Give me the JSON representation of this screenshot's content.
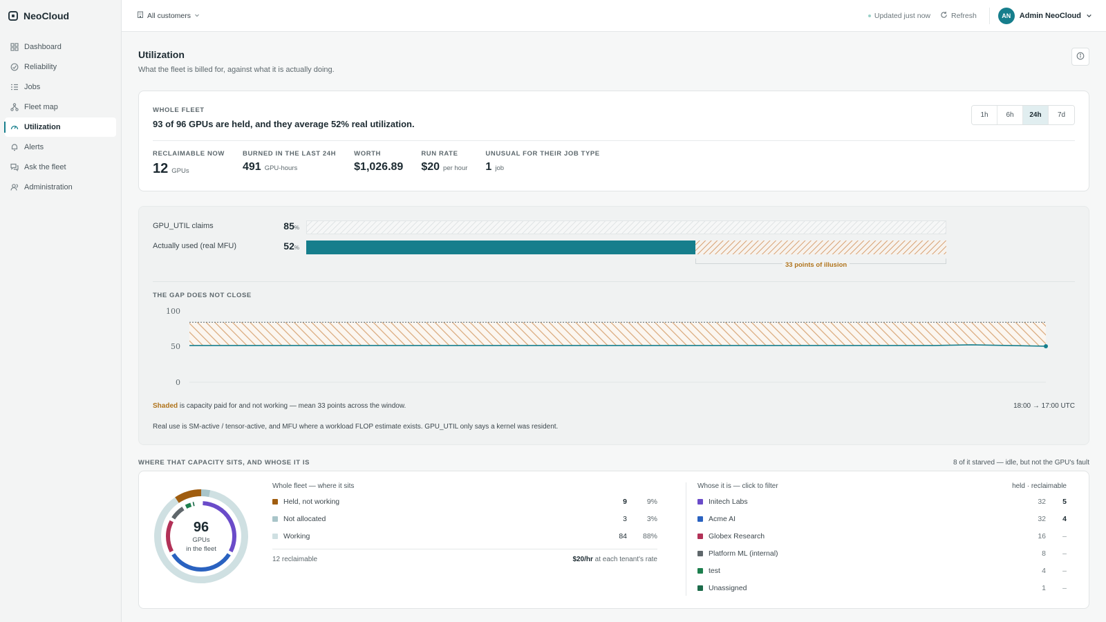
{
  "brand": {
    "name": "NeoCloud"
  },
  "sidebar": {
    "items": [
      {
        "label": "Dashboard",
        "icon": "grid-icon",
        "active": false
      },
      {
        "label": "Reliability",
        "icon": "shield-icon",
        "active": false
      },
      {
        "label": "Jobs",
        "icon": "list-icon",
        "active": false
      },
      {
        "label": "Fleet map",
        "icon": "network-icon",
        "active": false
      },
      {
        "label": "Utilization",
        "icon": "gauge-icon",
        "active": true
      },
      {
        "label": "Alerts",
        "icon": "bell-icon",
        "active": false
      },
      {
        "label": "Ask the fleet",
        "icon": "chat-icon",
        "active": false
      },
      {
        "label": "Administration",
        "icon": "users-icon",
        "active": false
      }
    ]
  },
  "topbar": {
    "customer_filter": "All customers",
    "updated": "Updated just now",
    "refresh": "Refresh",
    "user_initials": "AN",
    "user_name": "Admin NeoCloud"
  },
  "page": {
    "title": "Utilization",
    "subtitle": "What the fleet is billed for, against what it is actually doing."
  },
  "summary": {
    "eyebrow": "WHOLE FLEET",
    "headline": "93 of 96 GPUs are held, and they average 52% real utilization.",
    "ranges": [
      {
        "label": "1h",
        "active": false
      },
      {
        "label": "6h",
        "active": false
      },
      {
        "label": "24h",
        "active": true
      },
      {
        "label": "7d",
        "active": false
      }
    ],
    "stats": [
      {
        "label": "RECLAIMABLE NOW",
        "value": "12",
        "unit": "GPUs"
      },
      {
        "label": "BURNED IN THE LAST 24H",
        "value": "491",
        "unit": "GPU-hours"
      },
      {
        "label": "WORTH",
        "value": "$1,026.89",
        "unit": ""
      },
      {
        "label": "RUN RATE",
        "value": "$20",
        "unit": "per hour"
      },
      {
        "label": "UNUSUAL FOR THEIR JOB TYPE",
        "value": "1",
        "unit": "job"
      }
    ]
  },
  "gap": {
    "claims_label": "GPU_UTIL claims",
    "claims_value": "85",
    "used_label": "Actually used (real MFU)",
    "used_value": "52",
    "pct_sign": "%",
    "illusion_label": "33 points of illusion",
    "eyebrow": "THE GAP DOES NOT CLOSE",
    "note_shaded": "Shaded",
    "note_rest": " is capacity paid for and not working — mean 33 points across the window.",
    "time_range": "18:00 → 17:00 UTC",
    "note2": "Real use is SM-active / tensor-active, and MFU where a workload FLOP estimate exists. GPU_UTIL only says a kernel was resident."
  },
  "chart_data": {
    "type": "area",
    "ylim": [
      0,
      100
    ],
    "yticks": [
      "100",
      "50",
      "0"
    ],
    "x_range": [
      "18:00",
      "17:00"
    ],
    "series": [
      {
        "values": [
          85,
          85,
          85,
          85,
          85,
          85,
          85,
          85,
          85,
          85,
          85,
          85,
          85,
          85,
          85,
          85,
          85,
          85,
          85,
          85,
          85,
          85,
          85,
          85
        ]
      },
      {
        "values": [
          52,
          52,
          52,
          52,
          52,
          52,
          52,
          52,
          52,
          52,
          52,
          52,
          52,
          52,
          52,
          52,
          52,
          52,
          52,
          52,
          52,
          53,
          52,
          51
        ]
      }
    ],
    "shaded_mean_gap": 33
  },
  "capacity": {
    "eyebrow": "WHERE THAT CAPACITY SITS, AND WHOSE IT IS",
    "right_note": "8 of it starved — idle, but not the GPU's fault",
    "total": "96",
    "total_label_1": "GPUs",
    "total_label_2": "in the fleet",
    "where_head": "Whole fleet — where it sits",
    "where_rows": [
      {
        "label": "Held, not working",
        "count": "9",
        "pct": "9%",
        "color": "#a05d0f",
        "strong": true
      },
      {
        "label": "Not allocated",
        "count": "3",
        "pct": "3%",
        "color": "#a9c5c9",
        "strong": false
      },
      {
        "label": "Working",
        "count": "84",
        "pct": "88%",
        "color": "#cfe0e2",
        "strong": false
      }
    ],
    "reclaimable": "12 reclaimable",
    "rate_bold": "$20/hr",
    "rate_rest": " at each tenant's rate",
    "whose_head": "Whose it is — click to filter",
    "whose_cols": "held · reclaimable",
    "tenants": [
      {
        "name": "Initech Labs",
        "held": "32",
        "reclaimable": "5",
        "color": "#6a4bc9"
      },
      {
        "name": "Acme AI",
        "held": "32",
        "reclaimable": "4",
        "color": "#2a62c0"
      },
      {
        "name": "Globex Research",
        "held": "16",
        "reclaimable": "–",
        "color": "#b23157"
      },
      {
        "name": "Platform ML (internal)",
        "held": "8",
        "reclaimable": "–",
        "color": "#5f676b"
      },
      {
        "name": "test",
        "held": "4",
        "reclaimable": "–",
        "color": "#1d7f4e"
      },
      {
        "name": "Unassigned",
        "held": "1",
        "reclaimable": "–",
        "color": "#1c6b4a"
      }
    ]
  }
}
